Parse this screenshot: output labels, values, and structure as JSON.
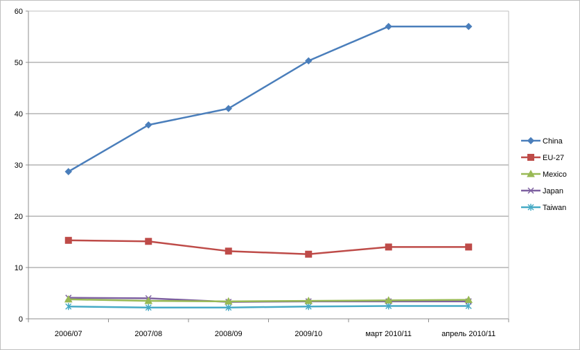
{
  "chart_data": {
    "type": "line",
    "categories": [
      "2006/07",
      "2007/08",
      "2008/09",
      "2009/10",
      "март 2010/11",
      "апрель 2010/11"
    ],
    "ylim": [
      0,
      60
    ],
    "y_ticks": [
      0,
      10,
      20,
      30,
      40,
      50,
      60
    ],
    "grid": "horizontal",
    "legend_position": "right",
    "series": [
      {
        "name": "China",
        "color": "#4a7ebb",
        "marker": "diamond",
        "values": [
          28.7,
          37.8,
          41.0,
          50.3,
          57.0,
          57.0
        ]
      },
      {
        "name": "EU-27",
        "color": "#be4b48",
        "marker": "square",
        "values": [
          15.3,
          15.1,
          13.2,
          12.6,
          14.0,
          14.0
        ]
      },
      {
        "name": "Mexico",
        "color": "#98b954",
        "marker": "triangle",
        "values": [
          3.8,
          3.5,
          3.4,
          3.5,
          3.6,
          3.7
        ]
      },
      {
        "name": "Japan",
        "color": "#7d60a0",
        "marker": "x",
        "values": [
          4.1,
          4.0,
          3.3,
          3.4,
          3.4,
          3.4
        ]
      },
      {
        "name": "Taiwan",
        "color": "#46aac5",
        "marker": "star",
        "values": [
          2.4,
          2.2,
          2.2,
          2.4,
          2.5,
          2.5
        ]
      }
    ]
  }
}
